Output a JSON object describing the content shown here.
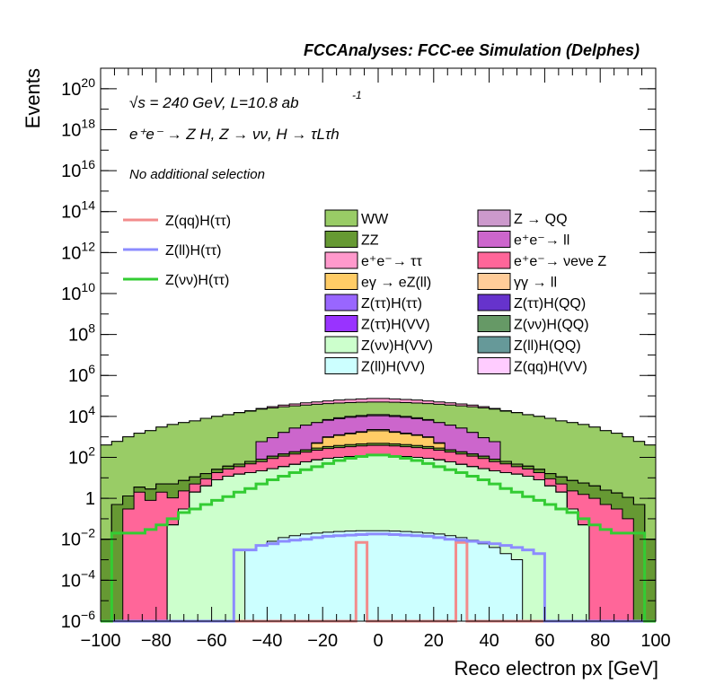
{
  "header_title": "FCCAnalyses: FCC-ee Simulation (Delphes)",
  "annotations": {
    "energy": "√s = 240 GeV, L=10.8 ab",
    "energy_sup": "-1",
    "process": "e⁺e⁻ → Z H, Z → νν, H → τLτh",
    "selection": "No additional selection"
  },
  "chart_data": {
    "type": "area",
    "subtype": "stacked histogram with signal overlays",
    "xlabel": "Reco electron px [GeV]",
    "ylabel": "Events",
    "xlim": [
      -100,
      100
    ],
    "ylim": [
      1e-06,
      1e+21
    ],
    "log_y": true,
    "grid": false,
    "x_ticks": [
      "−100",
      "−80",
      "−60",
      "−40",
      "−20",
      "0",
      "20",
      "40",
      "60",
      "80",
      "100"
    ],
    "y_tick_powers": [
      -6,
      -4,
      -2,
      0,
      2,
      4,
      6,
      8,
      10,
      12,
      14,
      16,
      18,
      20
    ],
    "y_tick_labels": [
      "10−6",
      "10−4",
      "10−2",
      "1",
      "102",
      "104",
      "106",
      "108",
      "1010",
      "1012",
      "1014",
      "1016",
      "1018",
      "1020"
    ],
    "bin_edges_range": [
      -100,
      100
    ],
    "n_bins": 50,
    "backgrounds": [
      {
        "name": "Z(ll)H(VV)",
        "color": "#ccffff",
        "values": [
          0,
          0,
          0,
          0,
          0,
          0,
          0,
          0,
          0,
          0,
          0,
          0,
          0,
          0.003,
          0.005,
          0.008,
          0.012,
          0.015,
          0.018,
          0.02,
          0.022,
          0.024,
          0.025,
          0.026,
          0.026,
          0.026,
          0.025,
          0.024,
          0.022,
          0.02,
          0.018,
          0.015,
          0.012,
          0.009,
          0.006,
          0.004,
          0.002,
          0.001,
          0,
          0,
          0,
          0,
          0,
          0,
          0,
          0,
          0,
          0,
          0,
          0
        ]
      },
      {
        "name": "Z(νν)H(VV)",
        "color": "#ccffcc",
        "values": [
          0,
          0,
          0,
          0,
          0,
          0,
          0.05,
          0.3,
          2,
          4,
          8,
          12,
          15,
          18,
          22,
          28,
          35,
          45,
          60,
          75,
          90,
          100,
          110,
          120,
          125,
          125,
          120,
          110,
          100,
          90,
          75,
          60,
          45,
          35,
          28,
          22,
          18,
          15,
          12,
          8,
          4,
          2,
          0.3,
          0.05,
          0,
          0,
          0,
          0,
          0,
          0
        ]
      },
      {
        "name": "Z(νν)H(QQ)",
        "color": "#669966",
        "values": [
          0,
          0,
          0,
          0,
          0,
          0,
          0,
          0,
          0,
          0,
          0,
          0,
          0,
          0,
          0,
          0,
          0,
          0,
          0,
          0,
          0,
          0,
          0,
          0.0003,
          0,
          0,
          0,
          0,
          0,
          0,
          0,
          0,
          0,
          0,
          0,
          0,
          0,
          0,
          0,
          0,
          0,
          0,
          0,
          0,
          0,
          0,
          0,
          0,
          0,
          0
        ]
      },
      {
        "name": "Z(ll)H(QQ)",
        "color": "#669999",
        "values": [
          0,
          0,
          0,
          0,
          0,
          0,
          0,
          0,
          0,
          0,
          0,
          0,
          0,
          0,
          0,
          0,
          0,
          0.0003,
          0,
          0,
          0,
          0,
          0,
          0,
          0,
          0,
          0,
          0,
          0,
          0,
          0,
          0,
          0,
          0,
          0,
          0,
          0,
          0,
          0,
          0,
          0,
          0,
          0,
          0,
          0,
          0,
          0,
          0,
          0,
          0
        ]
      },
      {
        "name": "Z(ττ)H(QQ)",
        "color": "#6633cc",
        "values": [
          0,
          0,
          0,
          0,
          0,
          0,
          0,
          0,
          0,
          0,
          0,
          0,
          0,
          0,
          0,
          0,
          0,
          0,
          3e-05,
          0,
          0,
          0,
          0,
          0,
          0,
          0,
          0,
          0,
          0,
          0,
          0,
          0,
          0,
          0,
          0,
          0,
          0,
          0,
          0,
          0,
          0,
          0,
          0,
          0,
          0,
          0,
          0,
          0,
          0,
          0
        ]
      },
      {
        "name": "Z(qq)H(VV)",
        "color": "#ffccff",
        "values": [
          0,
          0,
          0,
          0,
          0,
          0,
          0,
          0,
          0,
          0,
          0,
          0,
          0,
          0,
          0,
          0,
          0,
          0,
          0,
          0,
          0,
          0,
          0,
          0,
          0,
          0,
          0,
          0,
          0,
          0.003,
          0,
          0,
          0,
          0,
          0,
          0,
          0,
          0,
          0,
          0,
          0,
          0,
          0,
          0,
          0,
          0,
          0,
          0,
          0,
          0
        ]
      },
      {
        "name": "Z(ττ)H(VV)",
        "color": "#9933ff",
        "values": [
          0,
          0,
          0,
          0,
          0,
          0,
          0,
          0,
          0,
          0,
          0,
          0.01,
          0.015,
          0.02,
          0.03,
          0.04,
          0.06,
          0.08,
          0.1,
          0.12,
          0.14,
          0.16,
          0.18,
          0.2,
          0.2,
          0.2,
          0.2,
          0.18,
          0.16,
          0.14,
          0.12,
          0.1,
          0.08,
          0.06,
          0.04,
          0.03,
          0.02,
          0.015,
          0.01,
          0.006,
          0.004,
          0.002,
          0,
          0,
          0,
          0,
          0,
          0,
          0,
          0
        ]
      },
      {
        "name": "Z(ττ)H(ττ)",
        "color": "#9966ff",
        "values": [
          0,
          0,
          0,
          0,
          0,
          0,
          0,
          0,
          0,
          0,
          0,
          0,
          0.01,
          0.01,
          0.015,
          0.02,
          0.03,
          0.04,
          0.05,
          0.06,
          0.07,
          0.08,
          0.09,
          0.1,
          0.1,
          0.1,
          0.1,
          0.09,
          0.08,
          0.07,
          0.06,
          0.05,
          0.04,
          0.03,
          0.02,
          0.015,
          0.01,
          0.01,
          0.005,
          0.002,
          0,
          0,
          0,
          0,
          0,
          0,
          0,
          0,
          0,
          0
        ]
      },
      {
        "name": "e⁺e⁻→ ν_eν_e Z",
        "color": "#ff6699",
        "values": [
          0,
          0,
          0.3,
          2,
          0.8,
          2,
          1,
          2,
          3,
          5,
          10,
          15,
          20,
          30,
          40,
          60,
          80,
          100,
          120,
          150,
          180,
          200,
          220,
          240,
          260,
          260,
          240,
          220,
          200,
          180,
          150,
          120,
          100,
          80,
          60,
          40,
          30,
          20,
          15,
          10,
          5,
          3,
          2,
          1.5,
          1,
          0.5,
          0.3,
          0.1,
          0,
          0
        ]
      },
      {
        "name": "ZZ",
        "color": "#669933",
        "values": [
          0.01,
          0.5,
          1,
          1.5,
          2,
          3,
          4,
          5,
          6,
          7,
          8,
          10,
          12,
          15,
          20,
          25,
          30,
          40,
          50,
          60,
          70,
          80,
          90,
          95,
          100,
          100,
          95,
          90,
          80,
          70,
          60,
          50,
          40,
          30,
          25,
          20,
          15,
          12,
          10,
          8,
          7,
          6,
          5,
          4,
          3,
          2,
          1.5,
          1,
          0.5,
          0.01
        ]
      },
      {
        "name": "eγ → eZ(ll)",
        "color": "#ffcc66",
        "values": [
          0,
          0,
          0,
          0,
          0,
          0,
          0,
          0,
          0,
          0,
          0,
          0,
          0,
          0,
          0,
          0,
          0,
          0,
          0,
          200,
          600,
          800,
          1000,
          1200,
          1500,
          1500,
          1200,
          1000,
          800,
          600,
          200,
          0,
          0,
          0,
          0,
          0,
          0,
          0,
          0,
          0,
          0,
          0,
          0,
          0,
          0,
          0,
          0,
          0,
          0,
          0
        ]
      },
      {
        "name": "γγ → ll",
        "color": "#ffcc99",
        "values": [
          0,
          0,
          0,
          0,
          0,
          0,
          0,
          0,
          0,
          0,
          0,
          0,
          0,
          0,
          0,
          0,
          0,
          0,
          0,
          30,
          60,
          80,
          100,
          150,
          300,
          300,
          150,
          100,
          80,
          60,
          30,
          0,
          0,
          0,
          0,
          0,
          0,
          0,
          0,
          0,
          0,
          0,
          0,
          0,
          0,
          0,
          0,
          0,
          0,
          0
        ]
      },
      {
        "name": "e⁺e⁻→ ll",
        "color": "#cc66cc",
        "values": [
          0,
          0,
          0,
          0,
          0,
          0,
          0,
          0,
          0,
          0,
          0,
          0,
          0,
          0,
          500,
          800,
          1500,
          2500,
          3500,
          4500,
          5500,
          6500,
          7500,
          8000,
          8500,
          8500,
          8000,
          7500,
          6500,
          5500,
          4500,
          3500,
          2500,
          1500,
          800,
          500,
          0,
          0,
          0,
          0,
          0,
          0,
          0,
          0,
          0,
          0,
          0,
          0,
          0,
          0
        ]
      },
      {
        "name": "Z → QQ",
        "color": "#cc99cc",
        "values": [
          0,
          0,
          0,
          0,
          0,
          0,
          0,
          0,
          0,
          0,
          0,
          0,
          0,
          0,
          0,
          0,
          0,
          0,
          0,
          0,
          500,
          800,
          1000,
          1200,
          1500,
          1500,
          1200,
          1000,
          800,
          500,
          0,
          0,
          0,
          0,
          0,
          0,
          0,
          0,
          0,
          0,
          0,
          0,
          0,
          0,
          0,
          0,
          0,
          0,
          0,
          0
        ]
      },
      {
        "name": "WW",
        "color": "#99cc66",
        "values": [
          400,
          600,
          1000,
          1500,
          2000,
          3000,
          4000,
          5000,
          6000,
          8000,
          10000,
          12000,
          15000,
          18000,
          22000,
          25000,
          28000,
          30000,
          32000,
          34000,
          35000,
          36000,
          37000,
          38000,
          38000,
          38000,
          38000,
          37000,
          36000,
          35000,
          34000,
          32000,
          30000,
          28000,
          25000,
          22000,
          18000,
          15000,
          12000,
          10000,
          8000,
          6000,
          5000,
          4000,
          3000,
          2000,
          1500,
          1000,
          600,
          400
        ]
      },
      {
        "name": "e⁺e⁻→ ττ",
        "color": "#ff99cc",
        "values": [
          0,
          0,
          0,
          0,
          0,
          0,
          0,
          0,
          0,
          10,
          50,
          100,
          500,
          1000,
          2000,
          4000,
          6000,
          8000,
          10000,
          12000,
          15000,
          18000,
          20000,
          22000,
          25000,
          25000,
          22000,
          20000,
          18000,
          15000,
          12000,
          10000,
          8000,
          6000,
          4000,
          2000,
          1000,
          500,
          100,
          50,
          10,
          0,
          0,
          0,
          0,
          0,
          0,
          0,
          0,
          0
        ]
      }
    ],
    "signals": [
      {
        "name": "Z(qq)H(ττ)",
        "color": "#f28c8c",
        "values": [
          0,
          0,
          0,
          0,
          0,
          0,
          0,
          0,
          0,
          0,
          0,
          0,
          0,
          0,
          0,
          0,
          0,
          0,
          0,
          0,
          0,
          0,
          0,
          0.007,
          0,
          0,
          0,
          0,
          0,
          0,
          0,
          0,
          0.007,
          0,
          0,
          0,
          0,
          0,
          0,
          0,
          0,
          0,
          0,
          0,
          0,
          0,
          0,
          0,
          0,
          0
        ]
      },
      {
        "name": "Z(ll)H(ττ)",
        "color": "#8c8cff",
        "values": [
          0,
          0,
          0,
          0,
          0,
          0,
          0,
          0,
          0,
          0,
          0,
          0,
          0.003,
          0.003,
          0.005,
          0.006,
          0.008,
          0.009,
          0.01,
          0.012,
          0.014,
          0.015,
          0.016,
          0.017,
          0.018,
          0.018,
          0.017,
          0.016,
          0.015,
          0.014,
          0.012,
          0.01,
          0.009,
          0.008,
          0.007,
          0.006,
          0.005,
          0.004,
          0.003,
          0.002,
          0,
          0,
          0,
          0,
          0,
          0,
          0,
          0,
          0,
          0
        ]
      },
      {
        "name": "Z(νν)H(ττ)",
        "color": "#33cc33",
        "values": [
          0,
          0.02,
          0.02,
          0.02,
          0.03,
          0.05,
          0.1,
          0.2,
          0.3,
          0.5,
          0.8,
          1.2,
          2,
          3,
          5,
          8,
          12,
          18,
          25,
          35,
          50,
          70,
          90,
          110,
          130,
          130,
          110,
          90,
          70,
          50,
          35,
          25,
          18,
          12,
          8,
          5,
          3,
          2,
          1.2,
          0.8,
          0.5,
          0.3,
          0.2,
          0.1,
          0.05,
          0.03,
          0.02,
          0.02,
          0.02,
          0
        ]
      }
    ]
  },
  "legend_left": [
    {
      "label": "Z(qq)H(ττ)",
      "color": "#f28c8c"
    },
    {
      "label": "Z(ll)H(ττ)",
      "color": "#8c8cff"
    },
    {
      "label": "Z(νν)H(ττ)",
      "color": "#33cc33"
    }
  ],
  "legend_grid": [
    {
      "label": "WW",
      "color": "#99cc66"
    },
    {
      "label": "Z → QQ",
      "color": "#cc99cc"
    },
    {
      "label": "ZZ",
      "color": "#669933"
    },
    {
      "label": "e⁺e⁻→ ll",
      "color": "#cc66cc"
    },
    {
      "label": "e⁺e⁻→ ττ",
      "color": "#ff99cc"
    },
    {
      "label": "e⁺e⁻→ νeνe Z",
      "color": "#ff6699"
    },
    {
      "label": "eγ → eZ(ll)",
      "color": "#ffcc66"
    },
    {
      "label": "γγ → ll",
      "color": "#ffcc99"
    },
    {
      "label": "Z(ττ)H(ττ)",
      "color": "#9966ff"
    },
    {
      "label": "Z(ττ)H(QQ)",
      "color": "#6633cc"
    },
    {
      "label": "Z(ττ)H(VV)",
      "color": "#9933ff"
    },
    {
      "label": "Z(νν)H(QQ)",
      "color": "#669966"
    },
    {
      "label": "Z(νν)H(VV)",
      "color": "#ccffcc"
    },
    {
      "label": "Z(ll)H(QQ)",
      "color": "#669999"
    },
    {
      "label": "Z(ll)H(VV)",
      "color": "#ccffff"
    },
    {
      "label": "Z(qq)H(VV)",
      "color": "#ffccff"
    }
  ]
}
